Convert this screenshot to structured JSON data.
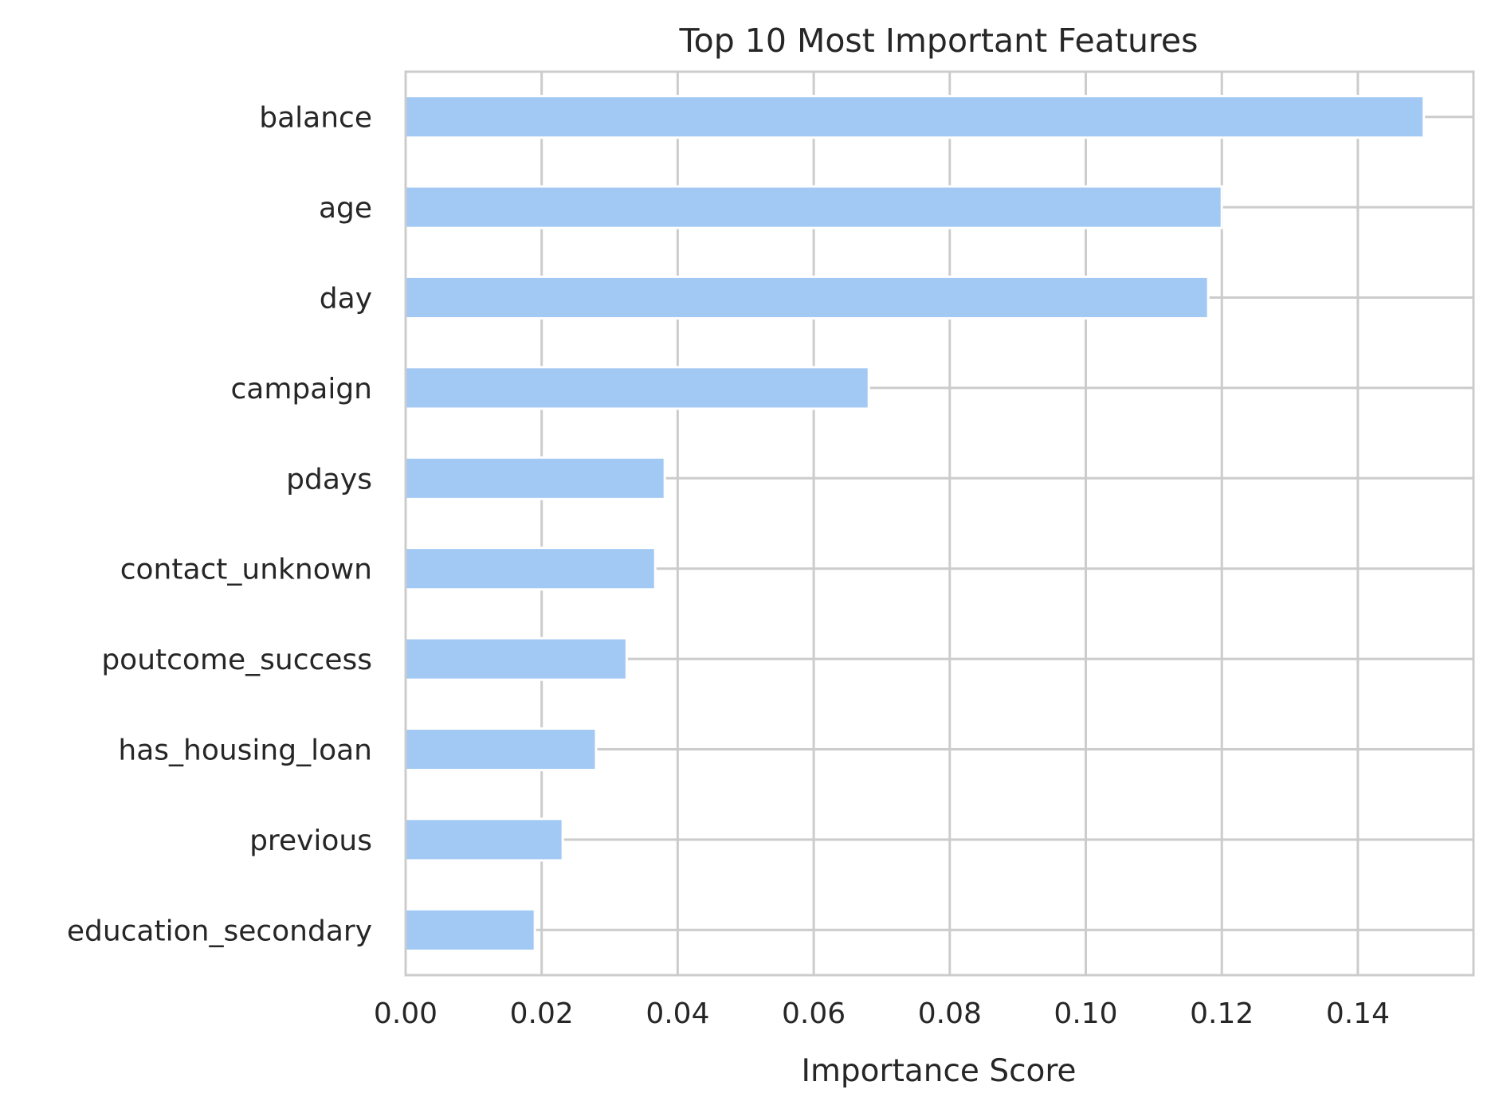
{
  "chart_data": {
    "type": "bar",
    "orientation": "horizontal",
    "title": "Top 10 Most Important Features",
    "xlabel": "Importance Score",
    "ylabel": "",
    "categories": [
      "balance",
      "age",
      "day",
      "campaign",
      "pdays",
      "contact_unknown",
      "poutcome_success",
      "has_housing_loan",
      "previous",
      "education_secondary"
    ],
    "values": [
      0.1497,
      0.12,
      0.118,
      0.0681,
      0.0381,
      0.0367,
      0.0325,
      0.028,
      0.0231,
      0.019
    ],
    "xlim": [
      0,
      0.157
    ],
    "xticks": [
      0.0,
      0.02,
      0.04,
      0.06,
      0.08,
      0.1,
      0.12,
      0.14
    ],
    "xtick_labels": [
      "0.00",
      "0.02",
      "0.04",
      "0.06",
      "0.08",
      "0.10",
      "0.12",
      "0.14"
    ],
    "grid": true,
    "legend": false,
    "colors": {
      "bar": "#a1c9f4",
      "grid": "#cccccc",
      "frame": "#cccccc",
      "text": "#262626"
    }
  }
}
